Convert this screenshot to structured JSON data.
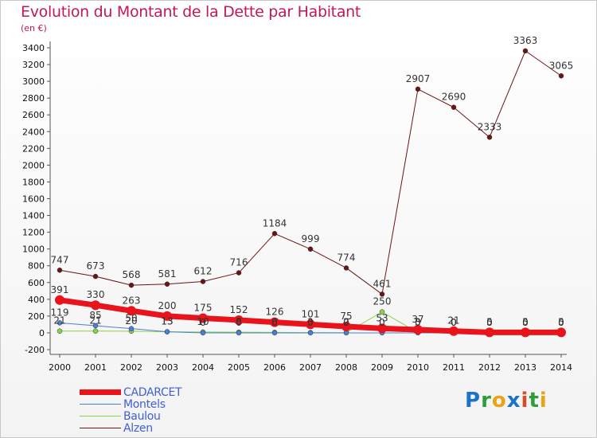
{
  "title": "Evolution du Montant de la Dette par Habitant",
  "subtitle": "(en €)",
  "logo": {
    "text": "Proxiti",
    "colors": [
      "#1a73c8",
      "#2e9e3a",
      "#e8a317",
      "#1a73c8",
      "#d94c27",
      "#2e9e3a",
      "#e8a317"
    ]
  },
  "chart_data": {
    "type": "line",
    "x": [
      2000,
      2001,
      2002,
      2003,
      2004,
      2005,
      2006,
      2007,
      2008,
      2009,
      2010,
      2011,
      2012,
      2013,
      2014
    ],
    "ylim": [
      -200,
      3400
    ],
    "yticks": [
      -200,
      0,
      200,
      400,
      600,
      800,
      1000,
      1200,
      1400,
      1600,
      1800,
      2000,
      2200,
      2400,
      2600,
      2800,
      3000,
      3200,
      3400
    ],
    "grid": false,
    "legend_position": "bottom-left",
    "series": [
      {
        "name": "CADARCET",
        "color": "#e8131b",
        "width": 7,
        "values": [
          391,
          330,
          263,
          200,
          175,
          152,
          126,
          101,
          75,
          53,
          37,
          21,
          5,
          5,
          5
        ],
        "labels": [
          "391",
          "330",
          "263",
          "200",
          "175",
          "152",
          "126",
          "101",
          "75",
          "53",
          "37",
          "21",
          "5",
          "5",
          "5"
        ]
      },
      {
        "name": "Montels",
        "color": "#4a7fd6",
        "width": 1,
        "values": [
          119,
          85,
          50,
          13,
          0,
          0,
          0,
          0,
          0,
          0,
          0,
          0,
          0,
          0,
          0
        ],
        "labels": [
          "119",
          "85",
          "50",
          "13",
          "0",
          "0",
          "0",
          "0",
          "0",
          "0",
          "0",
          "0",
          "0",
          "0",
          "0"
        ]
      },
      {
        "name": "Baulou",
        "color": "#8ad14a",
        "width": 1,
        "values": [
          21,
          21,
          20,
          13,
          10,
          8,
          6,
          3,
          2,
          250,
          3,
          0,
          0,
          0,
          0
        ],
        "labels": [
          "21",
          "21",
          "20",
          "13",
          "10",
          "8",
          "6",
          "3",
          "2",
          "250",
          "3",
          "0",
          "0",
          "0",
          "0"
        ]
      },
      {
        "name": "Alzen",
        "color": "#6b1414",
        "width": 1,
        "values": [
          747,
          673,
          568,
          581,
          612,
          716,
          1184,
          999,
          774,
          461,
          2907,
          2690,
          2333,
          3363,
          3065
        ],
        "labels": [
          "747",
          "673",
          "568",
          "581",
          "612",
          "716",
          "1184",
          "999",
          "774",
          "461",
          "2907",
          "2690",
          "2333",
          "3363",
          "3065"
        ]
      }
    ]
  }
}
